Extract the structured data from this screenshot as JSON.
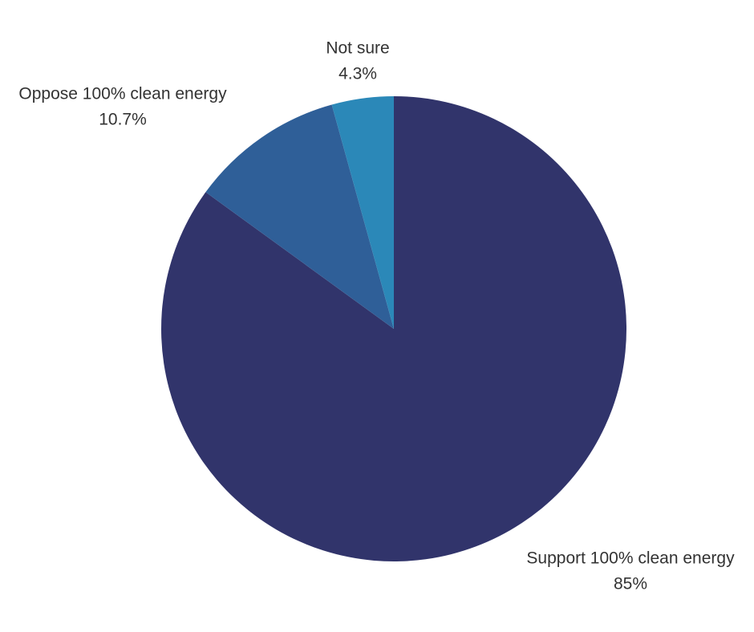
{
  "chart_data": {
    "type": "pie",
    "categories": [
      "Support 100% clean energy",
      "Oppose 100% clean energy",
      "Not sure"
    ],
    "values": [
      85,
      10.7,
      4.3
    ],
    "value_labels": [
      "85%",
      "10.7%",
      "4.3%"
    ],
    "colors": [
      "#31346b",
      "#2f5f98",
      "#2b88b8"
    ]
  }
}
